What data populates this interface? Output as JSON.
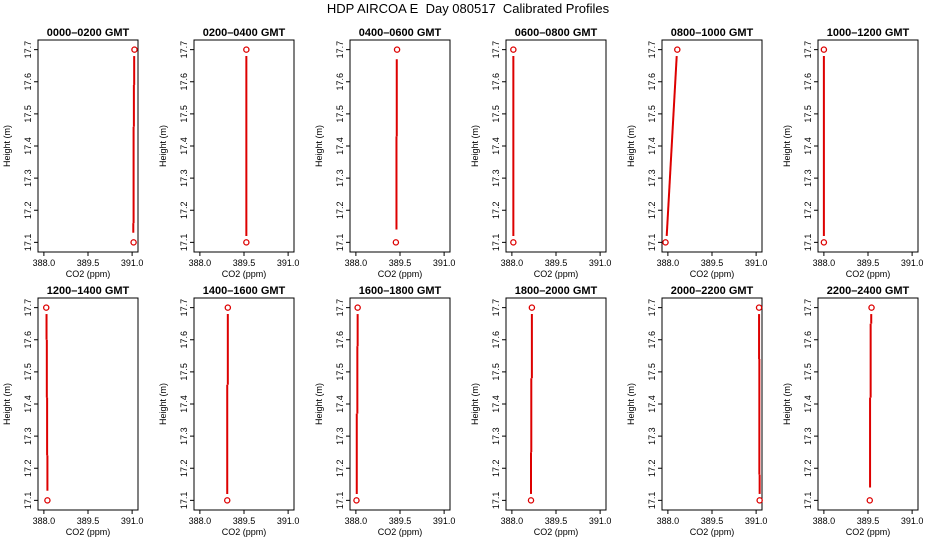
{
  "page": {
    "title": "HDP AIRCOA E  Day 080517  Calibrated Profiles"
  },
  "colors": {
    "profile": "#dd0000",
    "frame": "#000000"
  },
  "chart_data": [
    {
      "type": "line",
      "title": "0000–0200 GMT",
      "xlabel": "CO2 (ppm)",
      "ylabel": "Height (m)",
      "xlim": [
        387.8,
        391.2
      ],
      "ylim": [
        17.07,
        17.73
      ],
      "x_ticks": [
        "388.0",
        "389.5",
        "391.0"
      ],
      "x_tick_values": [
        388.0,
        389.5,
        391.0
      ],
      "y_ticks": [
        "17.1",
        "17.2",
        "17.3",
        "17.4",
        "17.5",
        "17.6",
        "17.7"
      ],
      "y_tick_values": [
        17.1,
        17.2,
        17.3,
        17.4,
        17.5,
        17.6,
        17.7
      ],
      "series": [
        {
          "x": [
            391.05,
            391.08
          ],
          "y": [
            17.1,
            17.7
          ]
        }
      ],
      "segments": [
        {
          "x": [
            391.04,
            391.04
          ],
          "y": [
            17.13,
            17.16
          ]
        },
        {
          "x": [
            391.05,
            391.05
          ],
          "y": [
            17.16,
            17.46
          ]
        },
        {
          "x": [
            391.06,
            391.06
          ],
          "y": [
            17.46,
            17.59
          ]
        },
        {
          "x": [
            391.07,
            391.07
          ],
          "y": [
            17.59,
            17.68
          ]
        }
      ]
    },
    {
      "type": "line",
      "title": "0200–0400 GMT",
      "xlabel": "CO2 (ppm)",
      "ylabel": "Height (m)",
      "xlim": [
        387.8,
        391.2
      ],
      "ylim": [
        17.07,
        17.73
      ],
      "x_ticks": [
        "388.0",
        "389.5",
        "391.0"
      ],
      "x_tick_values": [
        388.0,
        389.5,
        391.0
      ],
      "y_ticks": [
        "17.1",
        "17.2",
        "17.3",
        "17.4",
        "17.5",
        "17.6",
        "17.7"
      ],
      "y_tick_values": [
        17.1,
        17.2,
        17.3,
        17.4,
        17.5,
        17.6,
        17.7
      ],
      "series": [
        {
          "x": [
            389.58,
            389.58
          ],
          "y": [
            17.1,
            17.7
          ]
        }
      ],
      "segments": [
        {
          "x": [
            389.58,
            389.58
          ],
          "y": [
            17.12,
            17.68
          ]
        }
      ]
    },
    {
      "type": "line",
      "title": "0400–0600 GMT",
      "xlabel": "CO2 (ppm)",
      "ylabel": "Height (m)",
      "xlim": [
        387.8,
        391.2
      ],
      "ylim": [
        17.07,
        17.73
      ],
      "x_ticks": [
        "388.0",
        "389.5",
        "391.0"
      ],
      "x_tick_values": [
        388.0,
        389.5,
        391.0
      ],
      "y_ticks": [
        "17.1",
        "17.2",
        "17.3",
        "17.4",
        "17.5",
        "17.6",
        "17.7"
      ],
      "y_tick_values": [
        17.1,
        17.2,
        17.3,
        17.4,
        17.5,
        17.6,
        17.7
      ],
      "series": [
        {
          "x": [
            389.36,
            389.4
          ],
          "y": [
            17.1,
            17.7
          ]
        }
      ],
      "segments": [
        {
          "x": [
            389.38,
            389.38
          ],
          "y": [
            17.14,
            17.43
          ]
        },
        {
          "x": [
            389.39,
            389.39
          ],
          "y": [
            17.43,
            17.67
          ]
        }
      ]
    },
    {
      "type": "line",
      "title": "0600–0800 GMT",
      "xlabel": "CO2 (ppm)",
      "ylabel": "Height (m)",
      "xlim": [
        387.8,
        391.2
      ],
      "ylim": [
        17.07,
        17.73
      ],
      "x_ticks": [
        "388.0",
        "389.5",
        "391.0"
      ],
      "x_tick_values": [
        388.0,
        389.5,
        391.0
      ],
      "y_ticks": [
        "17.1",
        "17.2",
        "17.3",
        "17.4",
        "17.5",
        "17.6",
        "17.7"
      ],
      "y_tick_values": [
        17.1,
        17.2,
        17.3,
        17.4,
        17.5,
        17.6,
        17.7
      ],
      "series": [
        {
          "x": [
            388.05,
            388.05
          ],
          "y": [
            17.1,
            17.7
          ]
        }
      ],
      "segments": [
        {
          "x": [
            388.05,
            388.05
          ],
          "y": [
            17.12,
            17.68
          ]
        }
      ]
    },
    {
      "type": "line",
      "title": "0800–1000 GMT",
      "xlabel": "CO2 (ppm)",
      "ylabel": "Height (m)",
      "xlim": [
        387.8,
        391.2
      ],
      "ylim": [
        17.07,
        17.73
      ],
      "x_ticks": [
        "388.0",
        "389.5",
        "391.0"
      ],
      "x_tick_values": [
        388.0,
        389.5,
        391.0
      ],
      "y_ticks": [
        "17.1",
        "17.2",
        "17.3",
        "17.4",
        "17.5",
        "17.6",
        "17.7"
      ],
      "y_tick_values": [
        17.1,
        17.2,
        17.3,
        17.4,
        17.5,
        17.6,
        17.7
      ],
      "series": [
        {
          "x": [
            387.92,
            388.32
          ],
          "y": [
            17.1,
            17.7
          ]
        }
      ],
      "segments": [
        {
          "x": [
            387.96,
            388.3
          ],
          "y": [
            17.12,
            17.68
          ]
        }
      ]
    },
    {
      "type": "line",
      "title": "1000–1200 GMT",
      "xlabel": "CO2 (ppm)",
      "ylabel": "Height (m)",
      "xlim": [
        387.8,
        391.2
      ],
      "ylim": [
        17.07,
        17.73
      ],
      "x_ticks": [
        "388.0",
        "389.5",
        "391.0"
      ],
      "x_tick_values": [
        388.0,
        389.5,
        391.0
      ],
      "y_ticks": [
        "17.1",
        "17.2",
        "17.3",
        "17.4",
        "17.5",
        "17.6",
        "17.7"
      ],
      "y_tick_values": [
        17.1,
        17.2,
        17.3,
        17.4,
        17.5,
        17.6,
        17.7
      ],
      "series": [
        {
          "x": [
            388.0,
            388.0
          ],
          "y": [
            17.1,
            17.7
          ]
        }
      ],
      "segments": [
        {
          "x": [
            388.0,
            388.0
          ],
          "y": [
            17.12,
            17.68
          ]
        }
      ]
    },
    {
      "type": "line",
      "title": "1200–1400 GMT",
      "xlabel": "CO2 (ppm)",
      "ylabel": "Height (m)",
      "xlim": [
        387.8,
        391.2
      ],
      "ylim": [
        17.07,
        17.73
      ],
      "x_ticks": [
        "388.0",
        "389.5",
        "391.0"
      ],
      "x_tick_values": [
        388.0,
        389.5,
        391.0
      ],
      "y_ticks": [
        "17.1",
        "17.2",
        "17.3",
        "17.4",
        "17.5",
        "17.6",
        "17.7"
      ],
      "y_tick_values": [
        17.1,
        17.2,
        17.3,
        17.4,
        17.5,
        17.6,
        17.7
      ],
      "series": [
        {
          "x": [
            388.12,
            388.08
          ],
          "y": [
            17.1,
            17.7
          ]
        }
      ],
      "segments": [
        {
          "x": [
            388.12,
            388.12
          ],
          "y": [
            17.13,
            17.24
          ]
        },
        {
          "x": [
            388.11,
            388.11
          ],
          "y": [
            17.24,
            17.42
          ]
        },
        {
          "x": [
            388.1,
            388.1
          ],
          "y": [
            17.42,
            17.6
          ]
        },
        {
          "x": [
            388.09,
            388.09
          ],
          "y": [
            17.6,
            17.68
          ]
        }
      ]
    },
    {
      "type": "line",
      "title": "1400–1600 GMT",
      "xlabel": "CO2 (ppm)",
      "ylabel": "Height (m)",
      "xlim": [
        387.8,
        391.2
      ],
      "ylim": [
        17.07,
        17.73
      ],
      "x_ticks": [
        "388.0",
        "389.5",
        "391.0"
      ],
      "x_tick_values": [
        388.0,
        389.5,
        391.0
      ],
      "y_ticks": [
        "17.1",
        "17.2",
        "17.3",
        "17.4",
        "17.5",
        "17.6",
        "17.7"
      ],
      "y_tick_values": [
        17.1,
        17.2,
        17.3,
        17.4,
        17.5,
        17.6,
        17.7
      ],
      "series": [
        {
          "x": [
            388.93,
            388.95
          ],
          "y": [
            17.1,
            17.7
          ]
        }
      ],
      "segments": [
        {
          "x": [
            388.93,
            388.93
          ],
          "y": [
            17.12,
            17.46
          ]
        },
        {
          "x": [
            388.95,
            388.95
          ],
          "y": [
            17.46,
            17.68
          ]
        }
      ]
    },
    {
      "type": "line",
      "title": "1600–1800 GMT",
      "xlabel": "CO2 (ppm)",
      "ylabel": "Height (m)",
      "xlim": [
        387.8,
        391.2
      ],
      "ylim": [
        17.07,
        17.73
      ],
      "x_ticks": [
        "388.0",
        "389.5",
        "391.0"
      ],
      "x_tick_values": [
        388.0,
        389.5,
        391.0
      ],
      "y_ticks": [
        "17.1",
        "17.2",
        "17.3",
        "17.4",
        "17.5",
        "17.6",
        "17.7"
      ],
      "y_tick_values": [
        17.1,
        17.2,
        17.3,
        17.4,
        17.5,
        17.6,
        17.7
      ],
      "series": [
        {
          "x": [
            388.02,
            388.06
          ],
          "y": [
            17.1,
            17.7
          ]
        }
      ],
      "segments": [
        {
          "x": [
            388.03,
            388.03
          ],
          "y": [
            17.12,
            17.37
          ]
        },
        {
          "x": [
            388.05,
            388.05
          ],
          "y": [
            17.37,
            17.58
          ]
        },
        {
          "x": [
            388.06,
            388.06
          ],
          "y": [
            17.58,
            17.68
          ]
        }
      ]
    },
    {
      "type": "line",
      "title": "1800–2000 GMT",
      "xlabel": "CO2 (ppm)",
      "ylabel": "Height (m)",
      "xlim": [
        387.8,
        391.2
      ],
      "ylim": [
        17.07,
        17.73
      ],
      "x_ticks": [
        "388.0",
        "389.5",
        "391.0"
      ],
      "x_tick_values": [
        388.0,
        389.5,
        391.0
      ],
      "y_ticks": [
        "17.1",
        "17.2",
        "17.3",
        "17.4",
        "17.5",
        "17.6",
        "17.7"
      ],
      "y_tick_values": [
        17.1,
        17.2,
        17.3,
        17.4,
        17.5,
        17.6,
        17.7
      ],
      "series": [
        {
          "x": [
            388.65,
            388.68
          ],
          "y": [
            17.1,
            17.7
          ]
        }
      ],
      "segments": [
        {
          "x": [
            388.65,
            388.65
          ],
          "y": [
            17.12,
            17.25
          ]
        },
        {
          "x": [
            388.66,
            388.66
          ],
          "y": [
            17.25,
            17.48
          ]
        },
        {
          "x": [
            388.68,
            388.68
          ],
          "y": [
            17.48,
            17.68
          ]
        }
      ]
    },
    {
      "type": "line",
      "title": "2000–2200 GMT",
      "xlabel": "CO2 (ppm)",
      "ylabel": "Height (m)",
      "xlim": [
        387.8,
        391.2
      ],
      "ylim": [
        17.07,
        17.73
      ],
      "x_ticks": [
        "388.0",
        "389.5",
        "391.0"
      ],
      "x_tick_values": [
        388.0,
        389.5,
        391.0
      ],
      "y_ticks": [
        "17.1",
        "17.2",
        "17.3",
        "17.4",
        "17.5",
        "17.6",
        "17.7"
      ],
      "y_tick_values": [
        17.1,
        17.2,
        17.3,
        17.4,
        17.5,
        17.6,
        17.7
      ],
      "series": [
        {
          "x": [
            391.12,
            391.1
          ],
          "y": [
            17.1,
            17.7
          ]
        }
      ],
      "segments": [
        {
          "x": [
            391.12,
            391.12
          ],
          "y": [
            17.12,
            17.18
          ]
        },
        {
          "x": [
            391.11,
            391.11
          ],
          "y": [
            17.18,
            17.54
          ]
        },
        {
          "x": [
            391.1,
            391.1
          ],
          "y": [
            17.54,
            17.68
          ]
        }
      ]
    },
    {
      "type": "line",
      "title": "2200–2400 GMT",
      "xlabel": "CO2 (ppm)",
      "ylabel": "Height (m)",
      "xlim": [
        387.8,
        391.2
      ],
      "ylim": [
        17.07,
        17.73
      ],
      "x_ticks": [
        "388.0",
        "389.5",
        "391.0"
      ],
      "x_tick_values": [
        388.0,
        389.5,
        391.0
      ],
      "y_ticks": [
        "17.1",
        "17.2",
        "17.3",
        "17.4",
        "17.5",
        "17.6",
        "17.7"
      ],
      "y_tick_values": [
        17.1,
        17.2,
        17.3,
        17.4,
        17.5,
        17.6,
        17.7
      ],
      "series": [
        {
          "x": [
            389.56,
            389.62
          ],
          "y": [
            17.1,
            17.7
          ]
        }
      ],
      "segments": [
        {
          "x": [
            389.57,
            389.57
          ],
          "y": [
            17.14,
            17.42
          ]
        },
        {
          "x": [
            389.59,
            389.59
          ],
          "y": [
            17.42,
            17.65
          ]
        },
        {
          "x": [
            389.61,
            389.61
          ],
          "y": [
            17.65,
            17.68
          ]
        }
      ]
    }
  ]
}
